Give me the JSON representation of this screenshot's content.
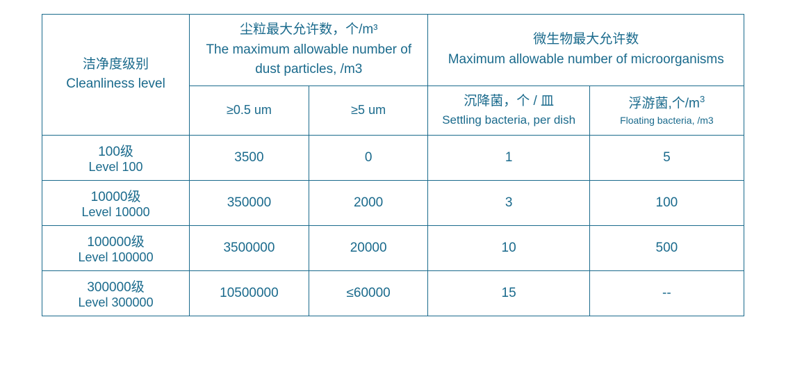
{
  "table": {
    "type": "table",
    "colors": {
      "border": "#1a6a8c",
      "text": "#1a6a8c",
      "background": "#ffffff"
    },
    "header": {
      "cleanliness": {
        "cn": "洁净度级别",
        "en": "Cleanliness level"
      },
      "dust": {
        "cn": "尘粒最大允许数，个/m³",
        "en": "The maximum allowable number of dust particles, /m3"
      },
      "micro": {
        "cn": "微生物最大允许数",
        "en": "Maximum allowable number of microorganisms"
      },
      "dust_sub1": "≥0.5 um",
      "dust_sub2": "≥5 um",
      "micro_sub1": {
        "cn": "沉降菌，个 / 皿",
        "en": "Settling bacteria, per dish"
      },
      "micro_sub2": {
        "cn": "浮游菌,个/m",
        "cn_sup": "3",
        "en": "Floating bacteria, /m3"
      }
    },
    "rows": [
      {
        "label_cn": "100级",
        "label_en": "Level 100",
        "dust1": "3500",
        "dust2": "0",
        "micro1": "1",
        "micro2": "5"
      },
      {
        "label_cn": "10000级",
        "label_en": "Level 10000",
        "dust1": "350000",
        "dust2": "2000",
        "micro1": "3",
        "micro2": "100"
      },
      {
        "label_cn": "100000级",
        "label_en": "Level 100000",
        "dust1": "3500000",
        "dust2": "20000",
        "micro1": "10",
        "micro2": "500"
      },
      {
        "label_cn": "300000级",
        "label_en": "Level 300000",
        "dust1": "10500000",
        "dust2": "≤60000",
        "micro1": "15",
        "micro2": "--"
      }
    ]
  }
}
